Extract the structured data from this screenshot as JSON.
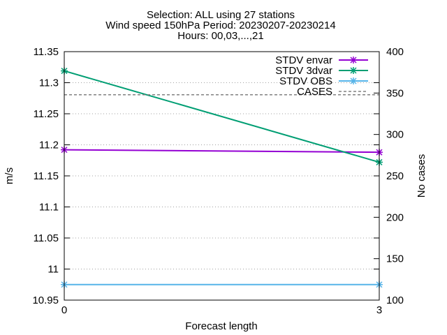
{
  "chart_data": {
    "type": "line",
    "title_lines": [
      "Selection: ALL using    27 stations",
      "Wind speed 150hPa   Period: 20230207-20230214",
      "Hours: 00,03,...,21"
    ],
    "xlabel": "Forecast length",
    "ylabel": "m/s",
    "y2label": "No cases",
    "x": [
      0,
      3
    ],
    "x_ticks": [
      "0",
      "3"
    ],
    "xlim": [
      0,
      3
    ],
    "ylim": [
      10.95,
      11.35
    ],
    "y_ticks": [
      "10.95",
      "11",
      "11.05",
      "11.1",
      "11.15",
      "11.2",
      "11.25",
      "11.3",
      "11.35"
    ],
    "y2lim": [
      100,
      400
    ],
    "y2_ticks": [
      "100",
      "150",
      "200",
      "250",
      "300",
      "350",
      "400"
    ],
    "grid": true,
    "legend_position": "top-right",
    "series": [
      {
        "name": "STDV envar",
        "axis": "y1",
        "values": [
          11.192,
          11.188
        ],
        "color": "#9400d3",
        "marker": "x-star",
        "dash": false
      },
      {
        "name": "STDV 3dvar",
        "axis": "y1",
        "values": [
          11.319,
          11.172
        ],
        "color": "#009e73",
        "marker": "x-star",
        "dash": false
      },
      {
        "name": "STDV OBS",
        "axis": "y1",
        "values": [
          10.975,
          10.975
        ],
        "color": "#56b4e9",
        "marker": "x-star",
        "dash": false
      },
      {
        "name": "CASES",
        "axis": "y2",
        "values": [
          348,
          348
        ],
        "color": "#808080",
        "marker": "none",
        "dash": true
      }
    ]
  }
}
